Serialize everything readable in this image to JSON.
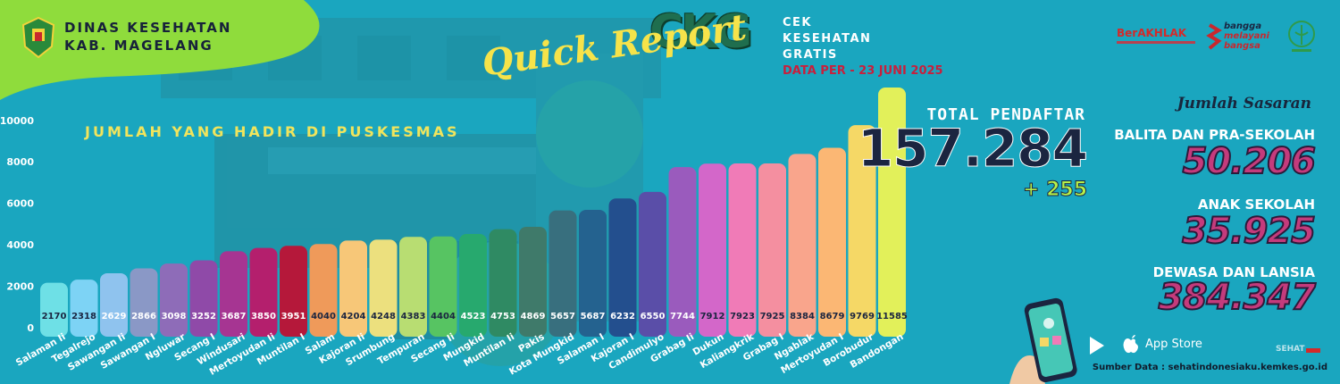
{
  "header": {
    "org_line1": "DINAS KESEHATAN",
    "org_line2": "KAB. MAGELANG",
    "brand": "CKG",
    "brand_sub1": "CEK",
    "brand_sub2": "KESEHATAN",
    "brand_sub3": "GRATIS",
    "date": "DATA PER - 23 JUNI 2025",
    "report_title": "Quick Report",
    "logo_berakhlak": "BerAKHLAK",
    "logo_bangga1": "bangga",
    "logo_bangga2": "melayani",
    "logo_bangga3": "bangsa"
  },
  "chart_title": "JUMLAH YANG HADIR DI PUSKESMAS",
  "totals": {
    "label": "TOTAL PENDAFTAR",
    "value": "157.284",
    "delta": "+ 255"
  },
  "sasaran": {
    "title": "Jumlah Sasaran",
    "items": [
      {
        "label": "BALITA DAN PRA-SEKOLAH",
        "value": "50.206"
      },
      {
        "label": "ANAK SEKOLAH",
        "value": "35.925"
      },
      {
        "label": "DEWASA DAN LANSIA",
        "value": "384.347"
      }
    ]
  },
  "footer": {
    "app_store": "App Store",
    "source": "Sumber Data :  sehatindonesiaku.kemkes.go.id",
    "sehat_label": "SEHAT"
  },
  "colors": {
    "background": "#1aa6bf",
    "banner_green": "#8fdc3c",
    "accent_yellow": "#f1e45c",
    "dark_navy": "#1b2540",
    "magenta": "#c43b7c"
  },
  "chart_data": {
    "type": "bar",
    "title": "JUMLAH YANG HADIR DI PUSKESMAS",
    "xlabel": "",
    "ylabel": "",
    "ylim": [
      0,
      11585
    ],
    "yticks": [
      0,
      2000,
      4000,
      6000,
      8000,
      10000
    ],
    "grid": false,
    "legend": "none",
    "categories": [
      "Salaman Ii",
      "Tegalrejo",
      "Sawangan Ii",
      "Sawangan I",
      "Ngluwar",
      "Secang I",
      "Windusari",
      "Mertoyudan Ii",
      "Muntilan I",
      "Salam",
      "Kajoran Ii",
      "Srumbung",
      "Tempuran",
      "Secang Ii",
      "Mungkid",
      "Muntilan Ii",
      "Pakis",
      "Kota Mungkid",
      "Salaman I",
      "Kajoran I",
      "Candimulyo",
      "Grabag Ii",
      "Dukun",
      "Kaliangkrik",
      "Grabag I",
      "Ngablak",
      "Mertoyudan I",
      "Borobudur",
      "Bandongan"
    ],
    "values": [
      2170,
      2318,
      2629,
      2866,
      3098,
      3252,
      3687,
      3850,
      3951,
      4040,
      4204,
      4248,
      4383,
      4404,
      4523,
      4753,
      4869,
      5657,
      5687,
      6232,
      6550,
      7744,
      7912,
      7923,
      7925,
      8384,
      8679,
      9769,
      11585
    ],
    "bar_colors": [
      "#6ee0e6",
      "#7dd3f5",
      "#8fc3ee",
      "#8a98c6",
      "#8e6cb8",
      "#8f4aa8",
      "#a63592",
      "#b41f6d",
      "#b5183a",
      "#ef9a5a",
      "#f7c778",
      "#ece07e",
      "#b8dd72",
      "#57c462",
      "#27a96e",
      "#2f8a63",
      "#3f7a6a",
      "#386f7e",
      "#24628f",
      "#234f8e",
      "#5a4ea8",
      "#9a5bbd",
      "#d367c9",
      "#f07bb7",
      "#f48fa0",
      "#f9a58c",
      "#fbb774",
      "#f5d866",
      "#e2f05a"
    ]
  }
}
